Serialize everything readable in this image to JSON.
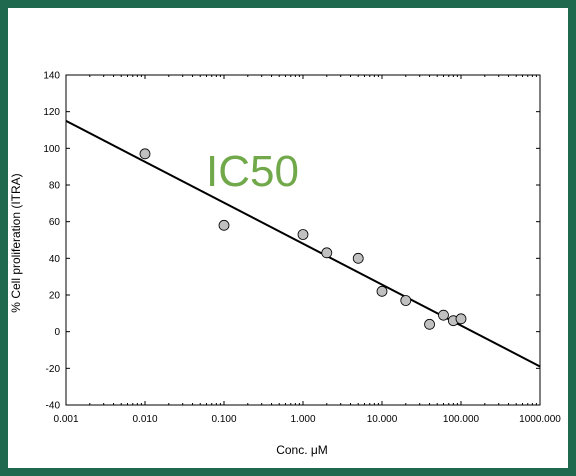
{
  "chart_data": {
    "type": "scatter",
    "xlabel": "Conc. μM",
    "ylabel": "% Cell proliferation (ITRA)",
    "x_scale": "log",
    "xlim": [
      0.001,
      1000
    ],
    "ylim": [
      -40,
      140
    ],
    "x_ticks": [
      {
        "value": 0.001,
        "label": "0.001"
      },
      {
        "value": 0.01,
        "label": "0.010"
      },
      {
        "value": 0.1,
        "label": "0.100"
      },
      {
        "value": 1,
        "label": "1.000"
      },
      {
        "value": 10,
        "label": "10.000"
      },
      {
        "value": 100,
        "label": "100.000"
      },
      {
        "value": 1000,
        "label": "1000.000"
      }
    ],
    "y_ticks": [
      {
        "value": -40,
        "label": "-40"
      },
      {
        "value": -20,
        "label": "-20"
      },
      {
        "value": 0,
        "label": "0"
      },
      {
        "value": 20,
        "label": "20"
      },
      {
        "value": 40,
        "label": "40"
      },
      {
        "value": 60,
        "label": "60"
      },
      {
        "value": 80,
        "label": "80"
      },
      {
        "value": 100,
        "label": "100"
      },
      {
        "value": 120,
        "label": "120"
      },
      {
        "value": 140,
        "label": "140"
      }
    ],
    "grid": false,
    "points": [
      {
        "x": 0.01,
        "y": 97
      },
      {
        "x": 0.1,
        "y": 58
      },
      {
        "x": 1,
        "y": 53
      },
      {
        "x": 2,
        "y": 43
      },
      {
        "x": 5,
        "y": 40
      },
      {
        "x": 10,
        "y": 22
      },
      {
        "x": 20,
        "y": 17
      },
      {
        "x": 40,
        "y": 4
      },
      {
        "x": 60,
        "y": 9
      },
      {
        "x": 80,
        "y": 6
      },
      {
        "x": 100,
        "y": 7
      }
    ],
    "fit_line": [
      {
        "x": 0.001,
        "y": 115
      },
      {
        "x": 1000,
        "y": -19
      }
    ],
    "annotation": {
      "text": "IC50",
      "color": "#70a84a"
    },
    "point_color": "#c0c0c0"
  }
}
